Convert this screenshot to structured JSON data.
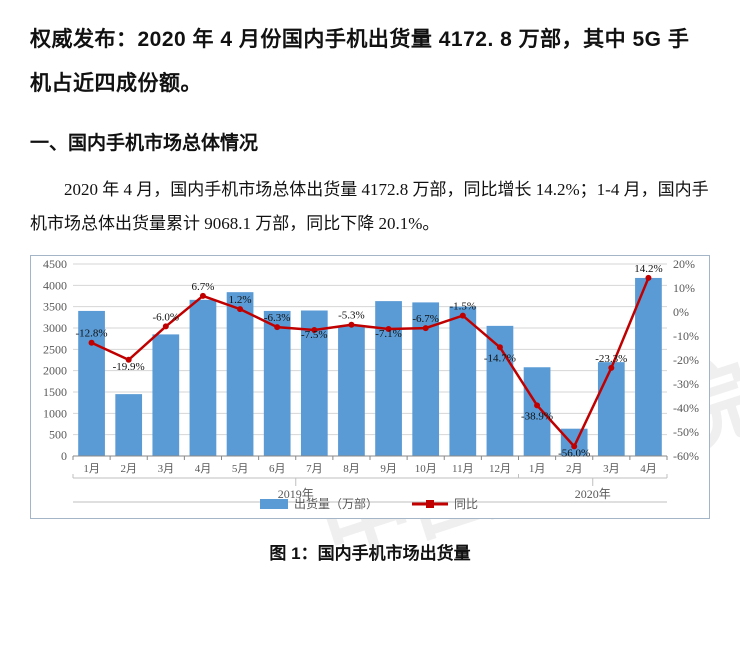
{
  "watermark": "中国信通院",
  "headline": "权威发布：2020 年 4 月份国内手机出货量 4172. 8 万部，其中 5G 手机占近四成份额。",
  "section1": {
    "title": "一、国内手机市场总体情况",
    "paragraph": "2020 年 4 月，国内手机市场总体出货量 4172.8 万部，同比增长 14.2%；1-4 月，国内手机市场总体出货量累计 9068.1 万部，同比下降 20.1%。"
  },
  "chart": {
    "type": "bar_line_combo",
    "caption": "图 1：国内手机市场出货量",
    "legend": {
      "bar": "出货量（万部）",
      "line": "同比",
      "bar_color": "#5b9bd5",
      "line_color": "#c00000"
    },
    "font_family": "SimSun, Songti SC, serif",
    "axis_font_size": 12,
    "label_font_size": 11,
    "value_label_font_size": 11,
    "background_color": "#ffffff",
    "grid_color": "#d6d6d6",
    "axis_color": "#888888",
    "year_axis_color": "#bfbfbf",
    "year_groups": [
      {
        "label": "2019年",
        "count": 12
      },
      {
        "label": "2020年",
        "count": 4
      }
    ],
    "months": [
      "1月",
      "2月",
      "3月",
      "4月",
      "5月",
      "6月",
      "7月",
      "8月",
      "9月",
      "10月",
      "11月",
      "12月",
      "1月",
      "2月",
      "3月",
      "4月"
    ],
    "bar_values": [
      3400,
      1450,
      2850,
      3660,
      3840,
      3400,
      3410,
      3050,
      3630,
      3600,
      3500,
      3050,
      2080,
      640,
      2200,
      4173
    ],
    "line_values_pct": [
      -12.8,
      -19.9,
      -6.0,
      6.7,
      1.2,
      -6.3,
      -7.5,
      -5.3,
      -7.1,
      -6.7,
      -1.5,
      -14.7,
      -38.9,
      -56.0,
      -23.3,
      14.2
    ],
    "line_labels": [
      "-12.8%",
      "-19.9%",
      "-6.0%",
      "6.7%",
      "1.2%",
      "-6.3%",
      "-7.5%",
      "-5.3%",
      "-7.1%",
      "-6.7%",
      "-1.5%",
      "-14.7%",
      "-38.9%",
      "-56.0%",
      "-23.3%",
      "14.2%"
    ],
    "y_left": {
      "min": 0,
      "max": 4500,
      "step": 500
    },
    "y_right": {
      "min": -60,
      "max": 20,
      "step": 10,
      "suffix": "%"
    },
    "bar_color": "#5b9bd5",
    "line_color": "#c00000",
    "line_width": 2.5,
    "marker_radius": 3,
    "bar_width_ratio": 0.72,
    "ylabel_color": "#595959",
    "month_label_color": "#595959"
  }
}
